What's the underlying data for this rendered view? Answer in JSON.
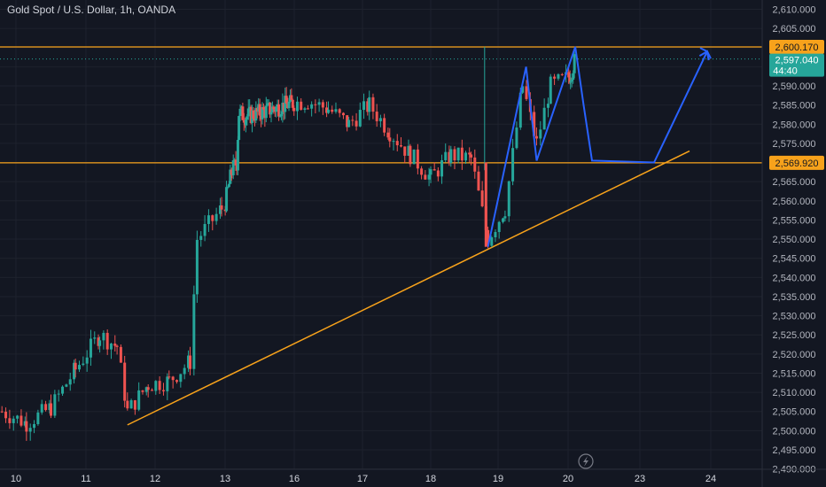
{
  "header": {
    "title": "Gold Spot / U.S. Dollar, 1h, OANDA"
  },
  "colors": {
    "background": "#131722",
    "grid": "#1e222d",
    "up": "#26a69a",
    "down": "#ef5350",
    "level": "#f7a21b",
    "projection": "#2962ff",
    "axis_text": "#b2b5be"
  },
  "chart_data": {
    "type": "candlestick",
    "symbol": "XAUUSD",
    "interval": "1h",
    "y_ticks": [
      "2,490.000",
      "2,495.000",
      "2,500.000",
      "2,505.000",
      "2,510.000",
      "2,515.000",
      "2,520.000",
      "2,525.000",
      "2,530.000",
      "2,535.000",
      "2,540.000",
      "2,545.000",
      "2,550.000",
      "2,555.000",
      "2,560.000",
      "2,565.000",
      "2,570.000",
      "2,575.000",
      "2,580.000",
      "2,585.000",
      "2,590.000",
      "2,595.000",
      "2,600.000",
      "2,605.000",
      "2,610.000"
    ],
    "ylim": [
      2489,
      2612
    ],
    "x_ticks": [
      {
        "label": "10",
        "day": 10
      },
      {
        "label": "11",
        "day": 11
      },
      {
        "label": "12",
        "day": 12
      },
      {
        "label": "13",
        "day": 13
      },
      {
        "label": "16",
        "day": 16
      },
      {
        "label": "17",
        "day": 17
      },
      {
        "label": "18",
        "day": 18
      },
      {
        "label": "19",
        "day": 19
      },
      {
        "label": "20",
        "day": 20
      },
      {
        "label": "23",
        "day": 23
      },
      {
        "label": "24",
        "day": 24
      }
    ],
    "horizontal_levels": [
      {
        "value": 2600.17,
        "label": "2,600.170"
      },
      {
        "value": 2569.92,
        "label": "2,569.920"
      }
    ],
    "current_price": {
      "value": 2597.04,
      "label": "2,597.040",
      "countdown": "44:40"
    },
    "trendline": [
      {
        "day": 11.6,
        "price": 2501.5
      },
      {
        "day": 23.7,
        "price": 2573.0
      }
    ],
    "projection_path": [
      {
        "day": 18.85,
        "price": 2548.0
      },
      {
        "day": 19.4,
        "price": 2595.0
      },
      {
        "day": 19.55,
        "price": 2570.5
      },
      {
        "day": 20.3,
        "price": 2600.2
      },
      {
        "day": 20.65,
        "price": 2585.0
      },
      {
        "day": 21.0,
        "price": 2570.5
      },
      {
        "day": 23.2,
        "price": 2570.0
      },
      {
        "day": 23.95,
        "price": 2599.0
      }
    ],
    "candles_close_path": [
      {
        "day": 9.8,
        "price": 2505
      },
      {
        "day": 10.15,
        "price": 2502
      },
      {
        "day": 10.5,
        "price": 2506
      },
      {
        "day": 10.85,
        "price": 2516
      },
      {
        "day": 11.2,
        "price": 2525
      },
      {
        "day": 11.45,
        "price": 2522
      },
      {
        "day": 11.6,
        "price": 2505
      },
      {
        "day": 11.9,
        "price": 2512
      },
      {
        "day": 12.2,
        "price": 2513
      },
      {
        "day": 12.5,
        "price": 2518
      },
      {
        "day": 12.6,
        "price": 2550
      },
      {
        "day": 12.95,
        "price": 2558
      },
      {
        "day": 13.3,
        "price": 2568
      },
      {
        "day": 13.5,
        "price": 2570
      },
      {
        "day": 13.6,
        "price": 2583
      },
      {
        "day": 13.9,
        "price": 2582
      },
      {
        "day": 16.2,
        "price": 2586
      },
      {
        "day": 16.5,
        "price": 2584
      },
      {
        "day": 16.8,
        "price": 2580
      },
      {
        "day": 17.1,
        "price": 2585
      },
      {
        "day": 17.4,
        "price": 2578
      },
      {
        "day": 17.7,
        "price": 2572
      },
      {
        "day": 18.0,
        "price": 2566
      },
      {
        "day": 18.3,
        "price": 2572
      },
      {
        "day": 18.6,
        "price": 2571
      },
      {
        "day": 18.85,
        "price": 2550
      },
      {
        "day": 19.1,
        "price": 2558
      },
      {
        "day": 19.35,
        "price": 2590
      },
      {
        "day": 19.55,
        "price": 2575
      },
      {
        "day": 19.75,
        "price": 2590
      },
      {
        "day": 20.1,
        "price": 2593
      },
      {
        "day": 20.3,
        "price": 2597
      }
    ]
  }
}
